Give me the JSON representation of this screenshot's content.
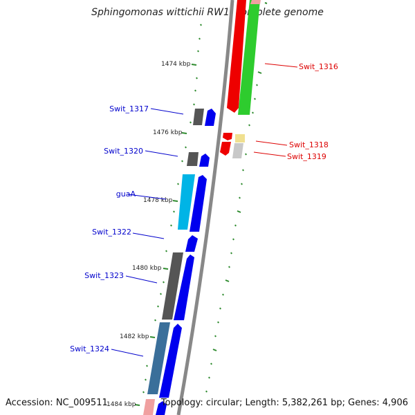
{
  "title": "Sphingomonas wittichii RW1, complete genome",
  "footer": {
    "accession": "Accession: NC_009511",
    "topology": "Topology: circular; Length: 5,382,261 bp; Genes: 4,906"
  },
  "ticks": [
    "1474 kbp",
    "1476 kbp",
    "1478 kbp",
    "1480 kbp",
    "1482 kbp",
    "1484 kbp"
  ],
  "labels": {
    "forward": [
      "Swit_1317",
      "Swit_1320",
      "guaA",
      "Swit_1322",
      "Swit_1323",
      "Swit_1324"
    ],
    "reverse": [
      "Swit_1316",
      "Swit_1318",
      "Swit_1319"
    ]
  },
  "colors": {
    "forward_label": "#0000cc",
    "reverse_label": "#dd0000",
    "tick": "#2e8b2e",
    "backbone": "#888888",
    "cds_forward": "#0000ee",
    "cds_reverse": "#ee0000",
    "gene_forward_gray": "#555555",
    "gene_cyan": "#00b4e6",
    "gene_steel": "#3a6f9a",
    "gene_green": "#2ecc2e",
    "gene_pink": "#f0a0a0",
    "gene_yellow": "#f0e090",
    "gene_lightgray": "#c8c8c8"
  }
}
